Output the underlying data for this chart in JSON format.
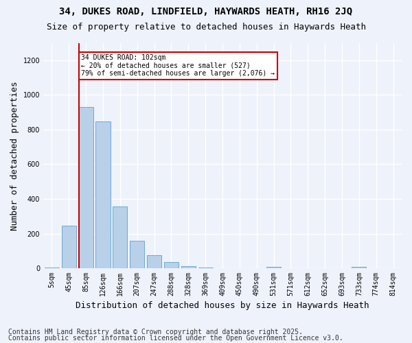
{
  "title_line1": "34, DUKES ROAD, LINDFIELD, HAYWARDS HEATH, RH16 2JQ",
  "title_line2": "Size of property relative to detached houses in Haywards Heath",
  "xlabel": "Distribution of detached houses by size in Haywards Heath",
  "ylabel": "Number of detached properties",
  "bar_color": "#b8d0e8",
  "bar_edge_color": "#6aaad4",
  "background_color": "#eef2fb",
  "grid_color": "#ffffff",
  "categories": [
    "5sqm",
    "45sqm",
    "85sqm",
    "126sqm",
    "166sqm",
    "207sqm",
    "247sqm",
    "288sqm",
    "328sqm",
    "369sqm",
    "409sqm",
    "450sqm",
    "490sqm",
    "531sqm",
    "571sqm",
    "612sqm",
    "652sqm",
    "693sqm",
    "733sqm",
    "774sqm",
    "814sqm"
  ],
  "values": [
    5,
    247,
    930,
    848,
    355,
    158,
    75,
    34,
    14,
    5,
    1,
    0,
    0,
    8,
    0,
    0,
    0,
    0,
    8,
    0,
    0
  ],
  "ylim": [
    0,
    1300
  ],
  "yticks": [
    0,
    200,
    400,
    600,
    800,
    1000,
    1200
  ],
  "property_bin_index": 2,
  "annotation_title": "34 DUKES ROAD: 102sqm",
  "annotation_line2": "← 20% of detached houses are smaller (527)",
  "annotation_line3": "79% of semi-detached houses are larger (2,076) →",
  "annotation_box_facecolor": "#ffffff",
  "annotation_box_edgecolor": "#cc0000",
  "vline_color": "#cc0000",
  "footer_line1": "Contains HM Land Registry data © Crown copyright and database right 2025.",
  "footer_line2": "Contains public sector information licensed under the Open Government Licence v3.0.",
  "title_fontsize": 10,
  "subtitle_fontsize": 9,
  "tick_fontsize": 7,
  "xlabel_fontsize": 9,
  "ylabel_fontsize": 9,
  "footer_fontsize": 7,
  "annotation_fontsize": 7
}
